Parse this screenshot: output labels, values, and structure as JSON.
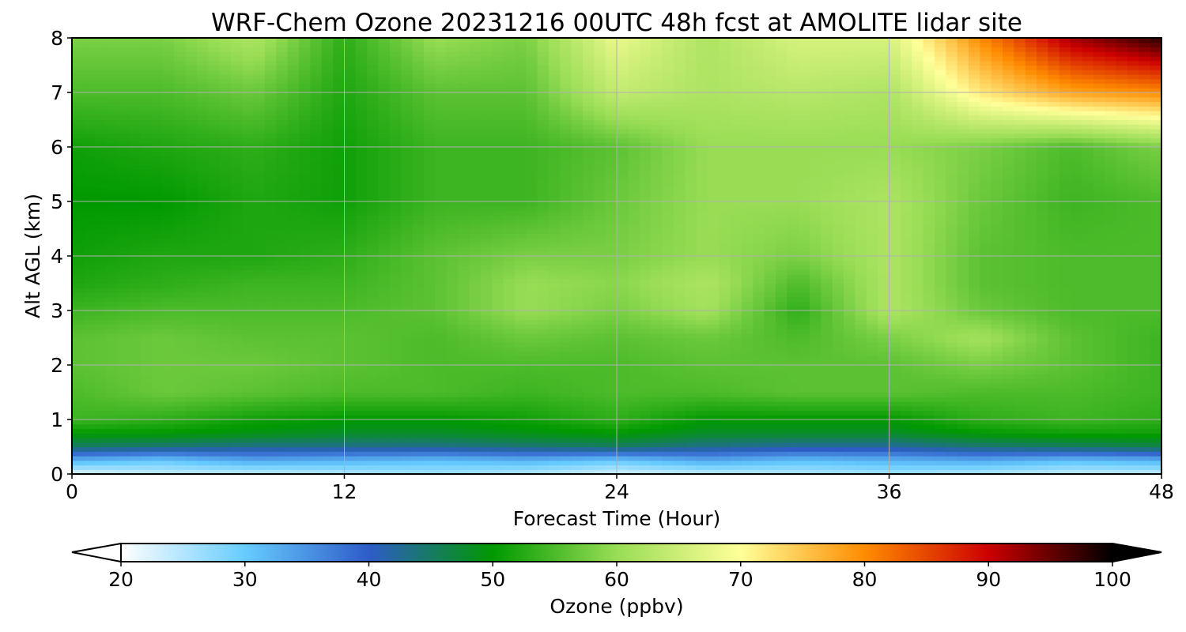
{
  "chart_data": {
    "type": "heatmap",
    "title": "WRF-Chem Ozone  20231216 00UTC 48h fcst at AMOLITE lidar site",
    "xlabel": "Forecast Time (Hour)",
    "ylabel": "Alt AGL (km)",
    "xlim": [
      0,
      48
    ],
    "ylim": [
      0,
      8
    ],
    "x_ticks": [
      "0",
      "12",
      "24",
      "36",
      "48"
    ],
    "y_ticks": [
      "0",
      "1",
      "2",
      "3",
      "4",
      "5",
      "6",
      "7",
      "8"
    ],
    "grid": true,
    "colorbar": {
      "label": "Ozone  (ppbv)",
      "orientation": "horizontal",
      "placement": "bottom",
      "range": [
        20,
        100
      ],
      "ticks": [
        "20",
        "30",
        "40",
        "50",
        "60",
        "70",
        "80",
        "90",
        "100"
      ],
      "extend": "both",
      "colormap": [
        "#ffffff",
        "#66ccff",
        "#2e5cc8",
        "#009900",
        "#99dd55",
        "#ffff99",
        "#ff8c00",
        "#cc0000",
        "#000000"
      ]
    },
    "x": [
      0,
      4,
      8,
      12,
      16,
      20,
      24,
      28,
      32,
      36,
      40,
      44,
      48
    ],
    "y": [
      0,
      0.25,
      0.5,
      0.75,
      1,
      1.5,
      2,
      2.5,
      3,
      3.5,
      4,
      5,
      6,
      7,
      8
    ],
    "z": [
      [
        22,
        24,
        24,
        25,
        26,
        25,
        23,
        24,
        25,
        26,
        25,
        24,
        24
      ],
      [
        32,
        30,
        33,
        32,
        31,
        32,
        30,
        33,
        31,
        32,
        33,
        31,
        32
      ],
      [
        45,
        44,
        43,
        43,
        43,
        44,
        45,
        43,
        42,
        42,
        44,
        45,
        46
      ],
      [
        50,
        50,
        49,
        48,
        48,
        49,
        50,
        48,
        48,
        48,
        50,
        51,
        51
      ],
      [
        54,
        53,
        51,
        50,
        50,
        51,
        53,
        50,
        50,
        50,
        53,
        54,
        53
      ],
      [
        55,
        57,
        56,
        55,
        55,
        54,
        55,
        55,
        56,
        56,
        55,
        55,
        54
      ],
      [
        56,
        57,
        57,
        56,
        55,
        55,
        55,
        56,
        56,
        56,
        58,
        56,
        54
      ],
      [
        56,
        57,
        56,
        56,
        55,
        57,
        56,
        57,
        55,
        58,
        61,
        56,
        54
      ],
      [
        54,
        55,
        55,
        55,
        56,
        60,
        58,
        61,
        53,
        62,
        57,
        55,
        55
      ],
      [
        52,
        53,
        54,
        54,
        56,
        60,
        59,
        62,
        55,
        62,
        56,
        55,
        55
      ],
      [
        51,
        52,
        52,
        53,
        56,
        58,
        58,
        60,
        58,
        62,
        56,
        55,
        55
      ],
      [
        50,
        50,
        52,
        51,
        54,
        54,
        57,
        60,
        60,
        62,
        57,
        54,
        55
      ],
      [
        51,
        52,
        53,
        51,
        54,
        54,
        56,
        60,
        60,
        60,
        58,
        55,
        58
      ],
      [
        55,
        55,
        57,
        52,
        56,
        56,
        64,
        62,
        63,
        62,
        72,
        78,
        80
      ],
      [
        58,
        58,
        62,
        53,
        60,
        58,
        68,
        62,
        66,
        66,
        80,
        92,
        98
      ]
    ]
  }
}
